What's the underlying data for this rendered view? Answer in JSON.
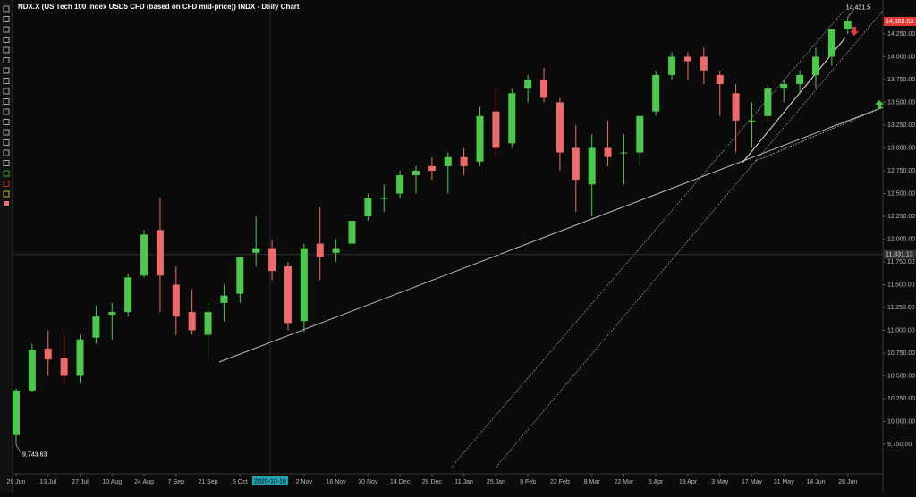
{
  "chart_data": {
    "type": "candlestick",
    "title": "NDX.X (US Tech 100 Index USD5 CFD (based on CFD mid-price)) INDX - Daily Chart",
    "x": [
      "29 Jun",
      null,
      "13 Jul",
      null,
      "27 Jul",
      null,
      "10 Aug",
      null,
      "24 Aug",
      null,
      "7 Sep",
      null,
      "21 Sep",
      null,
      "5 Oct",
      null,
      null,
      null,
      "2 Nov",
      null,
      "16 Nov",
      null,
      "30 Nov",
      null,
      "14 Dec",
      null,
      "28 Dec",
      null,
      "11 Jan",
      null,
      "25 Jan",
      null,
      "8 Feb",
      null,
      "22 Feb",
      null,
      "8 Mar",
      null,
      "22 Mar",
      null,
      "5 Apr",
      null,
      "19 Apr",
      null,
      "3 May",
      null,
      "17 May",
      null,
      "31 May",
      null,
      "14 Jun",
      null,
      "28 Jun"
    ],
    "open": [
      9850,
      10340,
      10800,
      10700,
      10500,
      10920,
      11170,
      11200,
      11600,
      12100,
      11500,
      11200,
      10950,
      11300,
      11400,
      11850,
      11900,
      11700,
      11100,
      11950,
      11850,
      11950,
      12250,
      12450,
      12500,
      12700,
      12800,
      12800,
      12900,
      12850,
      13400,
      13050,
      13650,
      13750,
      13500,
      13000,
      12600,
      13000,
      12950,
      12950,
      13400,
      13800,
      14000,
      14000,
      13800,
      13600,
      13300,
      13350,
      13650,
      13700,
      13800,
      14000,
      14300
    ],
    "high": [
      10360,
      10850,
      11000,
      10950,
      10950,
      11270,
      11300,
      11620,
      12100,
      12450,
      11700,
      11450,
      11300,
      11500,
      11800,
      12250,
      11990,
      11750,
      11950,
      12350,
      12000,
      12200,
      12500,
      12600,
      12750,
      12800,
      12900,
      12950,
      13000,
      13450,
      13650,
      13650,
      13800,
      13880,
      13550,
      13250,
      13150,
      13300,
      13150,
      13350,
      13850,
      14050,
      14050,
      14100,
      13850,
      13700,
      13500,
      13700,
      13750,
      13850,
      14100,
      14300,
      14431.5
    ],
    "low": [
      9743.63,
      10320,
      10500,
      10400,
      10420,
      10850,
      10900,
      11150,
      11580,
      11200,
      10950,
      10950,
      10680,
      11100,
      11300,
      11700,
      11550,
      11000,
      10980,
      11550,
      11750,
      11900,
      12200,
      12300,
      12450,
      12500,
      12650,
      12500,
      12700,
      12800,
      12900,
      13000,
      13500,
      13500,
      12750,
      12300,
      12250,
      12800,
      12600,
      12800,
      13350,
      13750,
      13750,
      13700,
      13350,
      12950,
      13000,
      13300,
      13500,
      13600,
      13650,
      13900,
      14250
    ],
    "close": [
      10340,
      10780,
      10680,
      10500,
      10900,
      11150,
      11200,
      11580,
      12050,
      11600,
      11150,
      11000,
      11200,
      11380,
      11800,
      11900,
      11650,
      11080,
      11900,
      11800,
      11900,
      12200,
      12450,
      12450,
      12700,
      12750,
      12750,
      12900,
      12800,
      13350,
      13000,
      13600,
      13750,
      13550,
      12950,
      12650,
      13000,
      12900,
      12950,
      13350,
      13800,
      14000,
      13950,
      13850,
      13700,
      13300,
      13300,
      13650,
      13700,
      13800,
      14000,
      14300,
      14386.63
    ],
    "up_color": "#4cc94c",
    "down_color": "#ef6b6b",
    "ylim": [
      9446,
      14622
    ],
    "yticks": [
      {
        "value": 9750,
        "label": "9,750.00"
      },
      {
        "value": 10000,
        "label": "10,000.00"
      },
      {
        "value": 10250,
        "label": "10,250.00"
      },
      {
        "value": 10500,
        "label": "10,500.00"
      },
      {
        "value": 10750,
        "label": "10,750.00"
      },
      {
        "value": 11000,
        "label": "11,000.00"
      },
      {
        "value": 11250,
        "label": "11,250.00"
      },
      {
        "value": 11500,
        "label": "11,500.00"
      },
      {
        "value": 11750,
        "label": "11,750.00"
      },
      {
        "value": 12000,
        "label": "12,000.00"
      },
      {
        "value": 12250,
        "label": "12,250.00"
      },
      {
        "value": 12500,
        "label": "12,500.00"
      },
      {
        "value": 12750,
        "label": "12,750.00"
      },
      {
        "value": 13000,
        "label": "13,000.00"
      },
      {
        "value": 13250,
        "label": "13,250.00"
      },
      {
        "value": 13500,
        "label": "13,500.00"
      },
      {
        "value": 13750,
        "label": "13,750.00"
      },
      {
        "value": 14000,
        "label": "14,000.00"
      },
      {
        "value": 14250,
        "label": "14,250.00"
      }
    ],
    "grid": false,
    "last_price": {
      "value": 14386.63,
      "label": "14,386.63"
    },
    "annotations": [
      {
        "value": 14431.5,
        "label": "14,431.5"
      },
      {
        "value": 9743.63,
        "label": "9,743.63"
      }
    ],
    "crosshair": {
      "x_label": "2020-10-16",
      "y": {
        "value": 11831.13,
        "label": "11,831.13"
      }
    }
  }
}
